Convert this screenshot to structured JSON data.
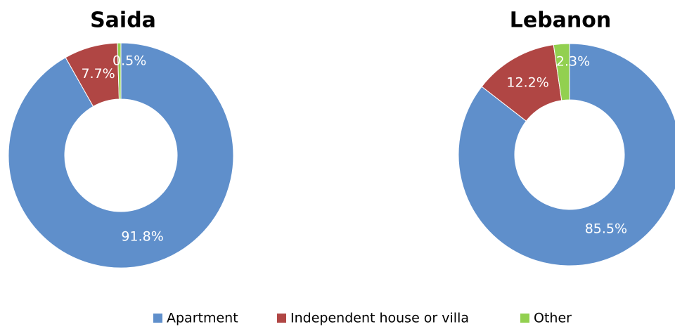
{
  "chart_data": [
    {
      "type": "pie",
      "donut": true,
      "title": "Saida",
      "categories": [
        "Apartment",
        "Independent house or villa",
        "Other"
      ],
      "values": [
        91.8,
        7.7,
        0.5
      ],
      "value_labels": [
        "91.8%",
        "7.7%",
        "0.5%"
      ],
      "colors": [
        "#5f8fcb",
        "#b04644",
        "#92d050"
      ]
    },
    {
      "type": "pie",
      "donut": true,
      "title": "Lebanon",
      "categories": [
        "Apartment",
        "Independent house or villa",
        "Other"
      ],
      "values": [
        85.5,
        12.2,
        2.3
      ],
      "value_labels": [
        "85.5%",
        "12.2%",
        "2.3%"
      ],
      "colors": [
        "#5f8fcb",
        "#b04644",
        "#92d050"
      ]
    }
  ]
}
